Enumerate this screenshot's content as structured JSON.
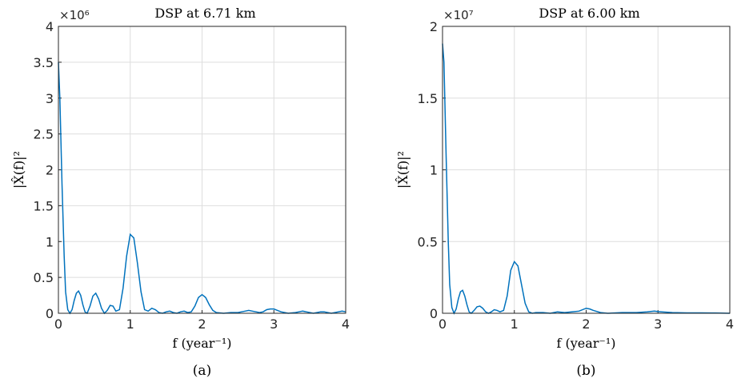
{
  "chart_data": [
    {
      "type": "line",
      "title": "DSP at 6.71 km",
      "xlabel": "f (year⁻¹)",
      "ylabel": "|X̂(f)|²",
      "caption": "(a)",
      "multiplier": "×10⁶",
      "xlim": [
        0,
        4
      ],
      "ylim": [
        0,
        4
      ],
      "xticks": [
        "0",
        "1",
        "2",
        "3",
        "4"
      ],
      "yticks": [
        "0",
        "0.5",
        "1",
        "1.5",
        "2",
        "2.5",
        "3",
        "3.5",
        "4"
      ],
      "grid": true,
      "color": "#0072bd",
      "series": [
        {
          "x": [
            0,
            0.02,
            0.05,
            0.08,
            0.1,
            0.13,
            0.16,
            0.19,
            0.22,
            0.25,
            0.28,
            0.31,
            0.34,
            0.37,
            0.4,
            0.44,
            0.48,
            0.52,
            0.56,
            0.6,
            0.64,
            0.68,
            0.72,
            0.76,
            0.8,
            0.85,
            0.9,
            0.95,
            1.0,
            1.05,
            1.1,
            1.15,
            1.2,
            1.25,
            1.3,
            1.35,
            1.4,
            1.45,
            1.5,
            1.55,
            1.6,
            1.65,
            1.7,
            1.75,
            1.8,
            1.85,
            1.9,
            1.95,
            2.0,
            2.05,
            2.1,
            2.15,
            2.2,
            2.3,
            2.4,
            2.5,
            2.55,
            2.6,
            2.65,
            2.7,
            2.75,
            2.8,
            2.85,
            2.9,
            2.95,
            3.0,
            3.05,
            3.1,
            3.2,
            3.3,
            3.35,
            3.4,
            3.45,
            3.5,
            3.55,
            3.6,
            3.65,
            3.7,
            3.75,
            3.8,
            3.85,
            3.9,
            3.95,
            4.0
          ],
          "y": [
            3.5,
            3.0,
            1.8,
            0.8,
            0.3,
            0.05,
            0.0,
            0.05,
            0.18,
            0.28,
            0.31,
            0.25,
            0.12,
            0.02,
            0.0,
            0.1,
            0.24,
            0.28,
            0.2,
            0.07,
            0.0,
            0.04,
            0.11,
            0.1,
            0.03,
            0.05,
            0.35,
            0.8,
            1.1,
            1.05,
            0.7,
            0.3,
            0.05,
            0.03,
            0.07,
            0.05,
            0.01,
            0.0,
            0.02,
            0.03,
            0.01,
            0.0,
            0.02,
            0.03,
            0.01,
            0.02,
            0.1,
            0.22,
            0.26,
            0.22,
            0.12,
            0.04,
            0.01,
            0.0,
            0.01,
            0.01,
            0.02,
            0.03,
            0.04,
            0.03,
            0.02,
            0.01,
            0.02,
            0.05,
            0.06,
            0.06,
            0.04,
            0.02,
            0.0,
            0.01,
            0.02,
            0.03,
            0.02,
            0.01,
            0.0,
            0.01,
            0.02,
            0.02,
            0.01,
            0.0,
            0.01,
            0.02,
            0.03,
            0.02
          ]
        }
      ]
    },
    {
      "type": "line",
      "title": "DSP at 6.00 km",
      "xlabel": "f (year⁻¹)",
      "ylabel": "|X̂(f)|²",
      "caption": "(b)",
      "multiplier": "×10⁷",
      "xlim": [
        0,
        4
      ],
      "ylim": [
        0,
        2
      ],
      "xticks": [
        "0",
        "1",
        "2",
        "3",
        "4"
      ],
      "yticks": [
        "0",
        "0.5",
        "1",
        "1.5",
        "2"
      ],
      "grid": true,
      "color": "#0072bd",
      "series": [
        {
          "x": [
            0,
            0.02,
            0.05,
            0.08,
            0.1,
            0.13,
            0.16,
            0.19,
            0.22,
            0.25,
            0.28,
            0.31,
            0.34,
            0.37,
            0.4,
            0.44,
            0.48,
            0.52,
            0.56,
            0.6,
            0.64,
            0.68,
            0.72,
            0.76,
            0.8,
            0.85,
            0.9,
            0.95,
            1.0,
            1.05,
            1.1,
            1.15,
            1.2,
            1.25,
            1.3,
            1.4,
            1.5,
            1.55,
            1.6,
            1.7,
            1.8,
            1.9,
            2.0,
            2.05,
            2.1,
            2.2,
            2.3,
            2.5,
            2.7,
            2.85,
            2.95,
            3.0,
            3.05,
            3.2,
            3.4,
            3.6,
            3.8,
            4.0
          ],
          "y": [
            1.88,
            1.75,
            1.1,
            0.5,
            0.2,
            0.04,
            0.0,
            0.03,
            0.1,
            0.15,
            0.16,
            0.12,
            0.06,
            0.01,
            0.0,
            0.02,
            0.045,
            0.05,
            0.035,
            0.01,
            0.0,
            0.01,
            0.025,
            0.02,
            0.01,
            0.02,
            0.12,
            0.3,
            0.36,
            0.33,
            0.2,
            0.07,
            0.01,
            0.0,
            0.005,
            0.005,
            0.0,
            0.005,
            0.01,
            0.005,
            0.01,
            0.015,
            0.035,
            0.03,
            0.02,
            0.005,
            0.0,
            0.005,
            0.005,
            0.01,
            0.015,
            0.012,
            0.01,
            0.005,
            0.003,
            0.003,
            0.002,
            0.0
          ]
        }
      ]
    }
  ]
}
